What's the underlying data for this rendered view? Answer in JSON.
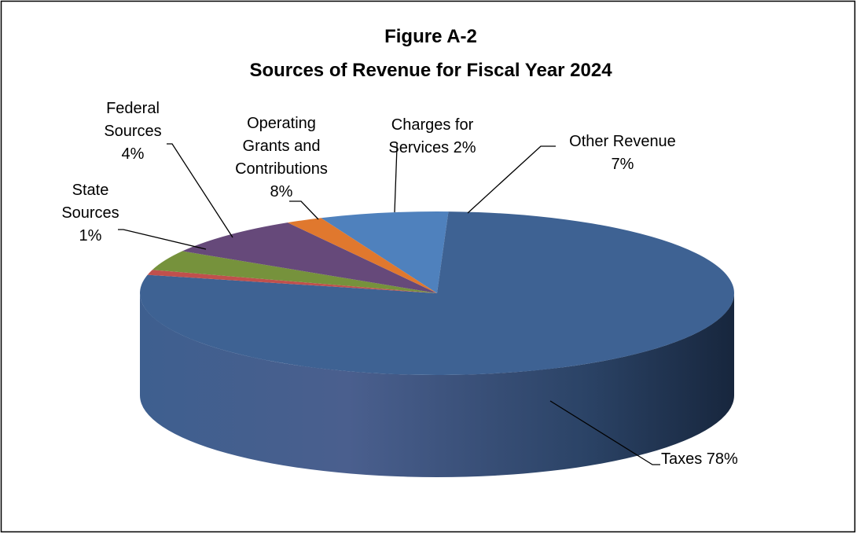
{
  "chart_data": {
    "type": "pie",
    "title_lines": [
      "Figure A-2",
      "Sources of Revenue for Fiscal Year 2024"
    ],
    "slices": [
      {
        "name": "Other Revenue",
        "value": 7,
        "color": "#4f81bd",
        "side_color": "#3a6496",
        "label_lines": [
          "Other Revenue",
          "7%"
        ]
      },
      {
        "name": "Taxes",
        "value": 78,
        "color": "#3e6293",
        "side_color": "#35577f",
        "label_lines": [
          "Taxes 78%"
        ]
      },
      {
        "name": "State Sources",
        "value": 1,
        "color": "#c0504d",
        "side_color": "#8e3a37",
        "label_lines": [
          "State",
          "Sources",
          "1%"
        ]
      },
      {
        "name": "Federal Sources",
        "value": 4,
        "color": "#76923c",
        "side_color": "#5d742f",
        "label_lines": [
          "Federal",
          "Sources",
          "4%"
        ]
      },
      {
        "name": "Operating Grants and Contributions",
        "value": 8,
        "color": "#66497a",
        "side_color": "#4f385f",
        "label_lines": [
          "Operating",
          "Grants and",
          "Contributions",
          "8%"
        ]
      },
      {
        "name": "Charges for Services",
        "value": 2,
        "color": "#e0782e",
        "side_color": "#b25e22",
        "label_lines": [
          "Charges for",
          "Services 2%"
        ]
      }
    ]
  }
}
